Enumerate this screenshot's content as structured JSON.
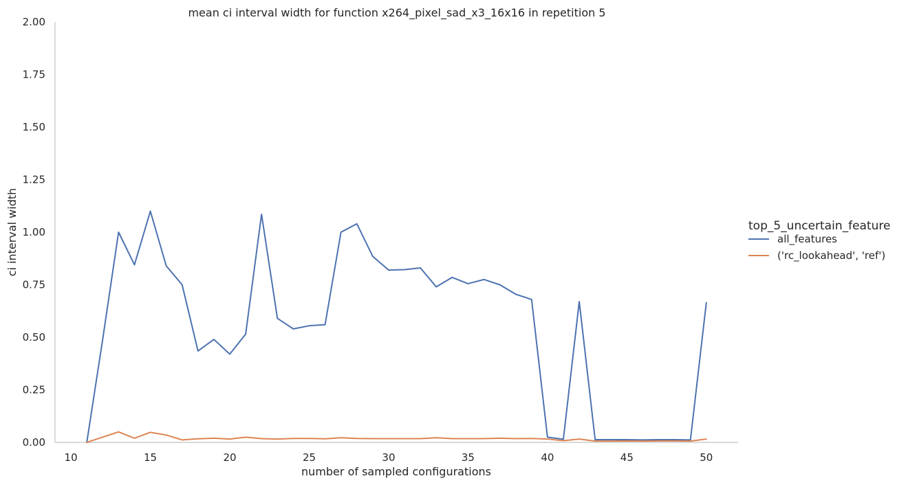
{
  "chart_data": {
    "type": "line",
    "title": "mean ci interval width for function x264_pixel_sad_x3_16x16 in repetition 5",
    "xlabel": "number of sampled configurations",
    "ylabel": "ci interval width",
    "xlim": [
      9,
      52
    ],
    "ylim": [
      0,
      2
    ],
    "xticks": [
      10,
      15,
      20,
      25,
      30,
      35,
      40,
      45,
      50
    ],
    "yticks": [
      0.0,
      0.25,
      0.5,
      0.75,
      1.0,
      1.25,
      1.5,
      1.75,
      2.0
    ],
    "xtick_labels": [
      "10",
      "15",
      "20",
      "25",
      "30",
      "35",
      "40",
      "45",
      "50"
    ],
    "ytick_labels": [
      "0.00",
      "0.25",
      "0.50",
      "0.75",
      "1.00",
      "1.25",
      "1.50",
      "1.75",
      "2.00"
    ],
    "grid": false,
    "legend": {
      "title": "top_5_uncertain_feature",
      "placement": "right"
    },
    "x": [
      11,
      12,
      13,
      14,
      15,
      16,
      17,
      18,
      19,
      20,
      21,
      22,
      23,
      24,
      25,
      26,
      27,
      28,
      29,
      30,
      31,
      32,
      33,
      34,
      35,
      36,
      37,
      38,
      39,
      40,
      41,
      42,
      43,
      44,
      45,
      46,
      47,
      48,
      49,
      50
    ],
    "series": [
      {
        "name": "all_features",
        "color": "#4c72b0",
        "values": [
          0.0,
          0.49,
          1.0,
          0.845,
          1.1,
          0.84,
          0.75,
          0.435,
          0.49,
          0.42,
          0.515,
          1.085,
          0.59,
          0.54,
          0.555,
          0.56,
          1.0,
          1.04,
          0.885,
          0.82,
          0.822,
          0.83,
          0.74,
          0.785,
          0.755,
          0.775,
          0.75,
          0.705,
          0.68,
          0.025,
          0.015,
          0.67,
          0.013,
          0.013,
          0.013,
          0.012,
          0.013,
          0.013,
          0.012,
          0.665
        ]
      },
      {
        "name": "('rc_lookahead', 'ref')",
        "color": "#dd8452",
        "values": [
          0.0,
          0.025,
          0.05,
          0.02,
          0.048,
          0.035,
          0.012,
          0.017,
          0.02,
          0.016,
          0.025,
          0.018,
          0.016,
          0.019,
          0.019,
          0.017,
          0.022,
          0.019,
          0.018,
          0.018,
          0.018,
          0.018,
          0.022,
          0.018,
          0.018,
          0.018,
          0.02,
          0.018,
          0.019,
          0.016,
          0.008,
          0.016,
          0.006,
          0.006,
          0.007,
          0.006,
          0.007,
          0.007,
          0.006,
          0.016
        ]
      }
    ]
  }
}
